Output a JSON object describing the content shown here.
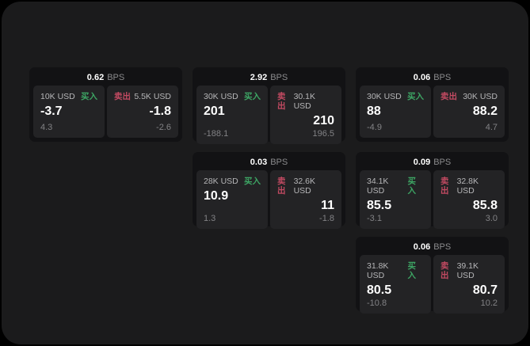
{
  "labels": {
    "bps_unit": "BPS",
    "buy": "买入",
    "sell": "卖出"
  },
  "colors": {
    "buy_accent": "#3da564",
    "sell_accent": "#c24a62",
    "frame_bg": "#1b1b1c",
    "card_bg": "#121214",
    "panel_bg": "#232325",
    "primary_text": "#ffffff",
    "muted_text": "#8b8b8d"
  },
  "cards": [
    {
      "bps": "0.62",
      "buy": {
        "size": "10K USD",
        "price": "-3.7",
        "sub": "4.3"
      },
      "sell": {
        "size": "5.5K USD",
        "price": "-1.8",
        "sub": "-2.6"
      }
    },
    {
      "bps": "2.92",
      "buy": {
        "size": "30K USD",
        "price": "201",
        "sub": "-188.1"
      },
      "sell": {
        "size": "30.1K USD",
        "price": "210",
        "sub": "196.5"
      }
    },
    {
      "bps": "0.06",
      "buy": {
        "size": "30K USD",
        "price": "88",
        "sub": "-4.9"
      },
      "sell": {
        "size": "30K USD",
        "price": "88.2",
        "sub": "4.7"
      }
    },
    {
      "bps": "0.03",
      "buy": {
        "size": "28K USD",
        "price": "10.9",
        "sub": "1.3"
      },
      "sell": {
        "size": "32.6K USD",
        "price": "11",
        "sub": "-1.8"
      }
    },
    {
      "bps": "0.09",
      "buy": {
        "size": "34.1K USD",
        "price": "85.5",
        "sub": "-3.1"
      },
      "sell": {
        "size": "32.8K USD",
        "price": "85.8",
        "sub": "3.0"
      }
    },
    {
      "bps": "0.06",
      "buy": {
        "size": "31.8K USD",
        "price": "80.5",
        "sub": "-10.8"
      },
      "sell": {
        "size": "39.1K USD",
        "price": "80.7",
        "sub": "10.2"
      }
    }
  ]
}
